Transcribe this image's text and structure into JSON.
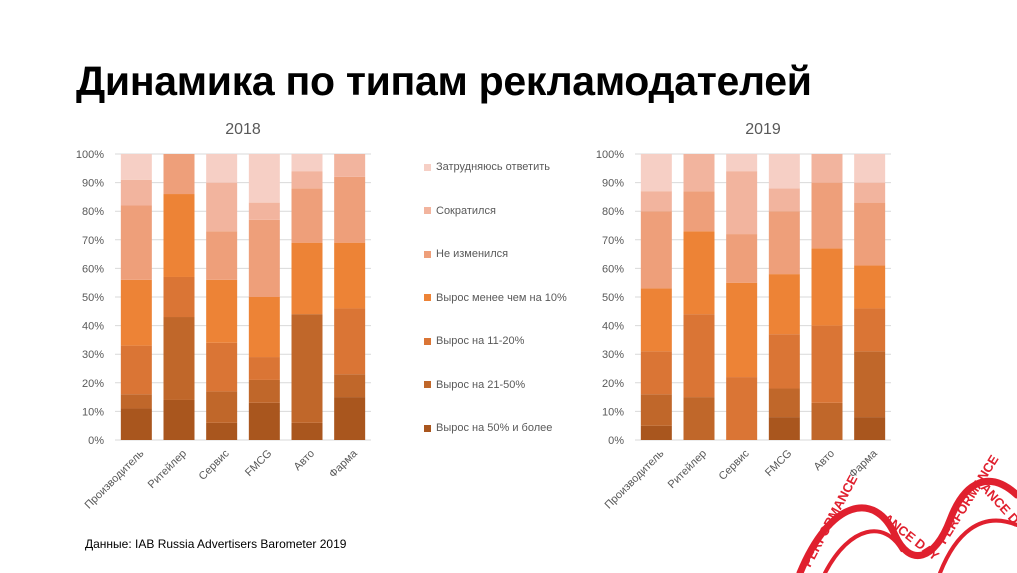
{
  "page": {
    "title": "Динамика по типам рекламодателей"
  },
  "colors": [
    "#A9561E",
    "#C0672A",
    "#DA7535",
    "#ED8336",
    "#EE9F7A",
    "#F2B49E",
    "#F6CFC5"
  ],
  "legend": [
    "Затрудняюсь ответить",
    "Сократился",
    "Не изменился",
    "Вырос менее чем на 10%",
    "Вырос на 11-20%",
    "Вырос на 21-50%",
    "Вырос на 50% и более"
  ],
  "chart_data": [
    {
      "type": "bar",
      "stacked": true,
      "title": "2018",
      "categories": [
        "Производитель",
        "Ритейлер",
        "Сервис",
        "FMCG",
        "Авто",
        "Фарма"
      ],
      "y_ticks": [
        "0%",
        "10%",
        "20%",
        "30%",
        "40%",
        "50%",
        "60%",
        "70%",
        "80%",
        "90%",
        "100%"
      ],
      "ylim": [
        0,
        100
      ],
      "grid": true,
      "legend_position": "right",
      "series": [
        {
          "name": "Вырос на 50% и более",
          "values": [
            11,
            14,
            6,
            13,
            6,
            15
          ]
        },
        {
          "name": "Вырос на 21-50%",
          "values": [
            5,
            29,
            11,
            8,
            38,
            8
          ]
        },
        {
          "name": "Вырос на 11-20%",
          "values": [
            17,
            14,
            17,
            8,
            0,
            23
          ]
        },
        {
          "name": "Вырос менее чем на 10%",
          "values": [
            23,
            29,
            22,
            21,
            25,
            23
          ]
        },
        {
          "name": "Не изменился",
          "values": [
            26,
            14,
            17,
            27,
            19,
            23
          ]
        },
        {
          "name": "Сократился",
          "values": [
            9,
            0,
            17,
            6,
            6,
            8
          ]
        },
        {
          "name": "Затрудняюсь ответить",
          "values": [
            9,
            0,
            10,
            17,
            6,
            0
          ]
        }
      ]
    },
    {
      "type": "bar",
      "stacked": true,
      "title": "2019",
      "categories": [
        "Производитель",
        "Ритейлер",
        "Сервис",
        "FMCG",
        "Авто",
        "Фарма"
      ],
      "y_ticks": [
        "0%",
        "10%",
        "20%",
        "30%",
        "40%",
        "50%",
        "60%",
        "70%",
        "80%",
        "90%",
        "100%"
      ],
      "ylim": [
        0,
        100
      ],
      "grid": true,
      "series": [
        {
          "name": "Вырос на 50% и более",
          "values": [
            5,
            0,
            0,
            8,
            0,
            8
          ]
        },
        {
          "name": "Вырос на 21-50%",
          "values": [
            11,
            15,
            0,
            10,
            13,
            23
          ]
        },
        {
          "name": "Вырос на 11-20%",
          "values": [
            15,
            29,
            22,
            19,
            27,
            15
          ]
        },
        {
          "name": "Вырос менее чем на 10%",
          "values": [
            22,
            29,
            33,
            21,
            27,
            15
          ]
        },
        {
          "name": "Не изменился",
          "values": [
            27,
            14,
            17,
            22,
            23,
            22
          ]
        },
        {
          "name": "Сократился",
          "values": [
            7,
            13,
            22,
            8,
            10,
            7
          ]
        },
        {
          "name": "Затрудняюсь ответить",
          "values": [
            13,
            0,
            6,
            12,
            0,
            10
          ]
        }
      ]
    }
  ],
  "source": "Данные: IAB Russia Advertisers Barometer 2019"
}
